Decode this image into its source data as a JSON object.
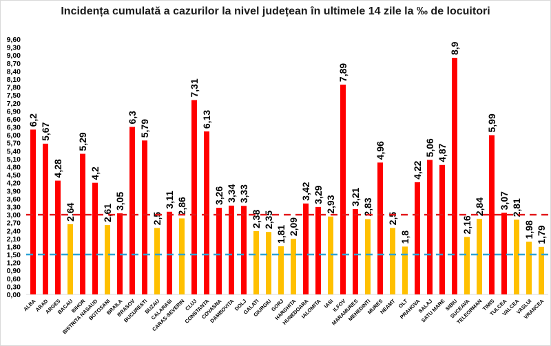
{
  "chart_data": {
    "type": "bar",
    "title": "Incidența cumulată a cazurilor la nivel județean în ultimele 14 zile la ‰ de locuitori",
    "xlabel": "",
    "ylabel": "",
    "ylim": [
      0,
      9.6
    ],
    "ytick_step": 0.3,
    "grid": false,
    "legend": "none",
    "categories": [
      "ALBA",
      "ARAD",
      "ARGES",
      "BACAU",
      "BIHOR",
      "BISTRITA NASAUD",
      "BOTOSANI",
      "BRAILA",
      "BRASOV",
      "BUCURESTI",
      "BUZAU",
      "CALARASI",
      "CARAS-SEVERIN",
      "CLUJ",
      "CONSTANTA",
      "COVASNA",
      "DAMBOVITA",
      "DOLJ",
      "GALATI",
      "GIURGIU",
      "GORJ",
      "HARGHITA",
      "HUNEDOARA",
      "IALOMITA",
      "IASI",
      "ILFOV",
      "MARAMURES",
      "MEHEDINTI",
      "MURES",
      "NEAMT",
      "OLT",
      "PRAHOVA",
      "SALAJ",
      "SATU MARE",
      "SIBIU",
      "SUCEAVA",
      "TELEORMAN",
      "TIMIS",
      "TULCEA",
      "VALCEA",
      "VASLUI",
      "VRANCEA"
    ],
    "values": [
      6.2,
      5.67,
      4.28,
      2.64,
      5.29,
      4.2,
      2.61,
      3.05,
      6.3,
      5.79,
      2.5,
      3.11,
      2.86,
      7.31,
      6.13,
      3.26,
      3.34,
      3.33,
      2.38,
      2.35,
      1.81,
      2.09,
      3.42,
      3.29,
      2.93,
      7.89,
      3.21,
      2.83,
      4.96,
      2.5,
      1.8,
      4.22,
      5.06,
      4.87,
      8.9,
      2.16,
      2.84,
      5.99,
      3.07,
      2.81,
      1.98,
      1.79
    ],
    "data_labels": [
      "6,2",
      "5,67",
      "4,28",
      "2,64",
      "5,29",
      "4,2",
      "2,61",
      "3,05",
      "6,3",
      "5,79",
      "2,5",
      "3,11",
      "2,86",
      "7,31",
      "6,13",
      "3,26",
      "3,34",
      "3,33",
      "2,38",
      "2,35",
      "1,81",
      "2,09",
      "3,42",
      "3,29",
      "2,93",
      "7,89",
      "3,21",
      "2,83",
      "4,96",
      "2,5",
      "1,8",
      "4,22",
      "5,06",
      "4,87",
      "8,9",
      "2,16",
      "2,84",
      "5,99",
      "3,07",
      "2,81",
      "1,98",
      "1,79"
    ],
    "color_threshold": 3.0,
    "colors": {
      "above": "#ff0000",
      "below": "#ffc000"
    },
    "reference_lines": [
      {
        "value": 3.0,
        "color": "#e31a1c",
        "style": "dashed"
      },
      {
        "value": 1.5,
        "color": "#2ea3d6",
        "style": "dashed"
      }
    ]
  }
}
